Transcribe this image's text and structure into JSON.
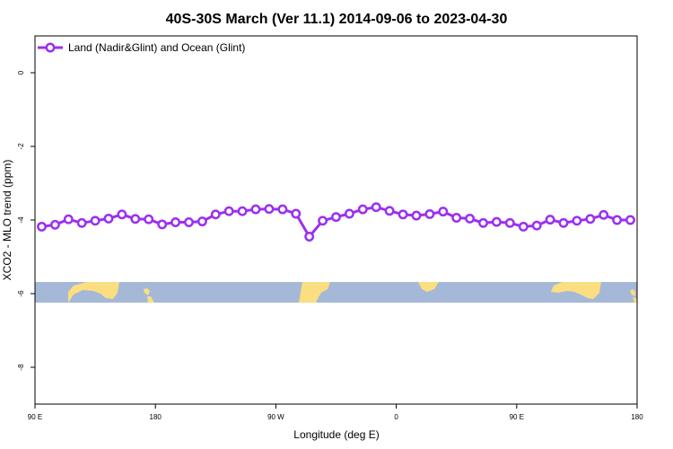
{
  "chart_data": {
    "type": "line",
    "title": "40S-30S March (Ver 11.1)   2014-09-06 to 2023-04-30",
    "xlabel": "Longitude (deg E)",
    "ylabel": "XCO2 - MLO trend (ppm)",
    "xlim": [
      90,
      540
    ],
    "ylim": [
      -9,
      1
    ],
    "x_ticks": [
      {
        "value": 90,
        "label": "90 E"
      },
      {
        "value": 180,
        "label": "180"
      },
      {
        "value": 270,
        "label": "90 W"
      },
      {
        "value": 360,
        "label": "0"
      },
      {
        "value": 450,
        "label": "90 E"
      },
      {
        "value": 540,
        "label": "180"
      }
    ],
    "y_ticks": [
      {
        "value": 0,
        "label": "0"
      },
      {
        "value": -2,
        "label": "-2"
      },
      {
        "value": -4,
        "label": "-4"
      },
      {
        "value": -6,
        "label": "-6"
      },
      {
        "value": -8,
        "label": "-8"
      }
    ],
    "grid": false,
    "legend_position": "top-left",
    "series": [
      {
        "name": "Land (Nadir&Glint) and Ocean (Glint)",
        "color": "#9b30f0",
        "x": [
          95,
          105,
          115,
          125,
          135,
          145,
          155,
          165,
          175,
          185,
          195,
          205,
          215,
          225,
          235,
          245,
          255,
          265,
          275,
          285,
          295,
          305,
          315,
          325,
          335,
          345,
          355,
          365,
          375,
          385,
          395,
          405,
          415,
          425,
          435,
          445,
          455,
          465,
          475,
          485,
          495,
          505,
          515,
          525,
          535
        ],
        "y": [
          -4.18,
          -4.13,
          -3.98,
          -4.08,
          -4.02,
          -3.96,
          -3.85,
          -3.97,
          -3.98,
          -4.12,
          -4.06,
          -4.06,
          -4.04,
          -3.85,
          -3.76,
          -3.76,
          -3.71,
          -3.7,
          -3.71,
          -3.83,
          -4.45,
          -4.02,
          -3.92,
          -3.83,
          -3.71,
          -3.65,
          -3.75,
          -3.85,
          -3.88,
          -3.84,
          -3.77,
          -3.94,
          -3.96,
          -4.08,
          -4.05,
          -4.08,
          -4.18,
          -4.15,
          -3.99,
          -4.08,
          -4.02,
          -3.97,
          -3.86,
          -4.0,
          -4.0
        ]
      }
    ],
    "map_strip": {
      "ocean_color": "#a5b8d8",
      "land_color": "#fbde80"
    }
  }
}
